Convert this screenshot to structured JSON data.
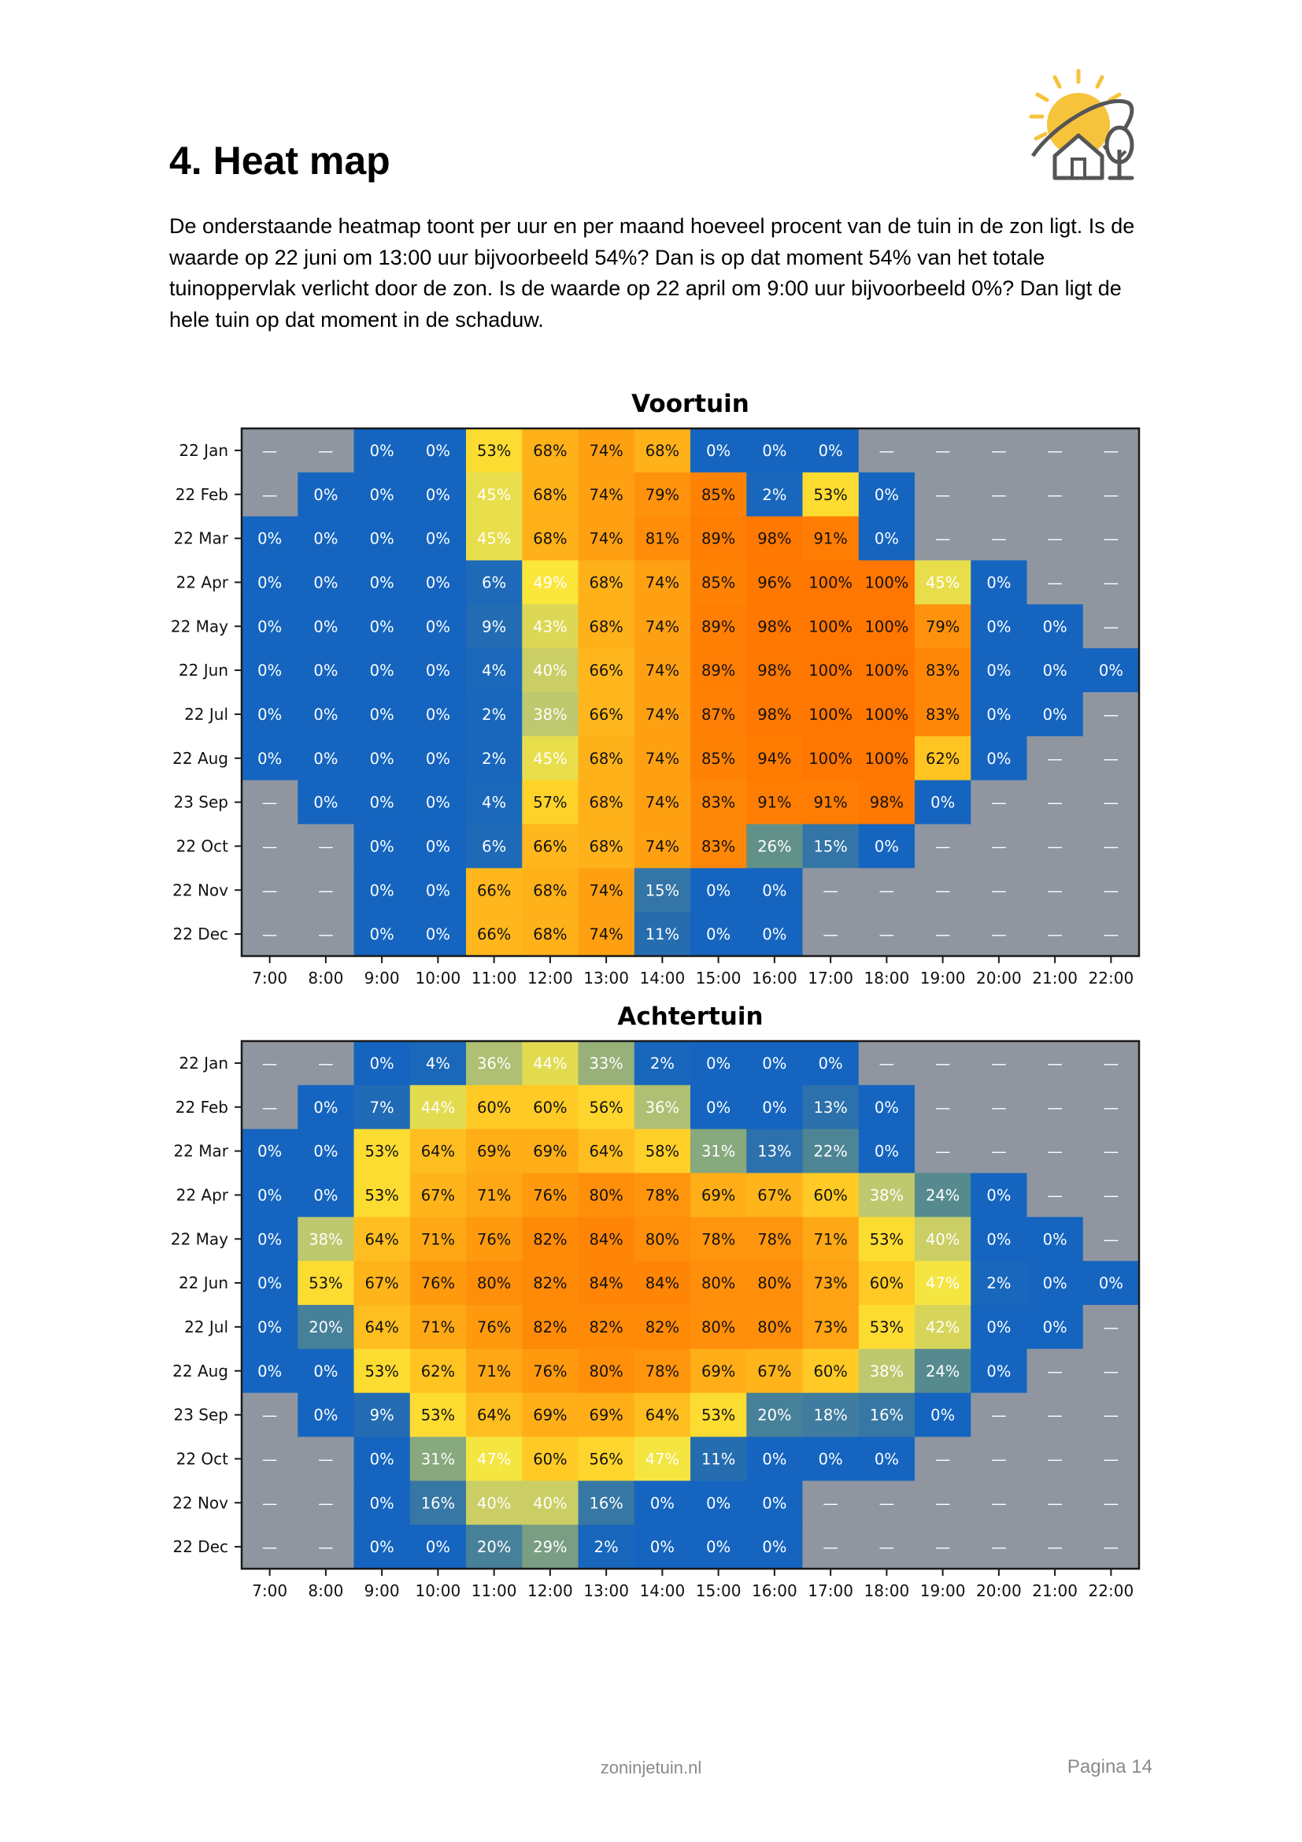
{
  "heading": "4. Heat map",
  "intro": "De onderstaande heatmap toont per uur en per maand hoeveel procent van de tuin in de zon ligt. Is de waarde op 22 juni om 13:00 uur bijvoorbeeld 54%? Dan is op dat moment 54% van het totale tuinoppervlak verlicht door de zon. Is de waarde op 22 april om 9:00 uur bijvoorbeeld 0%? Dan ligt de hele tuin op dat moment in de schaduw.",
  "logo_icon": "sun-house-tree-icon",
  "colors": {
    "no_sun_cell": "#8f96a0",
    "low": "#1565c0",
    "mid": "#ffe23a",
    "high": "#ff7a00"
  },
  "chart_data": [
    {
      "type": "heatmap",
      "title": "Voortuin",
      "x": [
        "7:00",
        "8:00",
        "9:00",
        "10:00",
        "11:00",
        "12:00",
        "13:00",
        "14:00",
        "15:00",
        "16:00",
        "17:00",
        "18:00",
        "19:00",
        "20:00",
        "21:00",
        "22:00"
      ],
      "y": [
        "22 Jan",
        "22 Feb",
        "22 Mar",
        "22 Apr",
        "22 May",
        "22 Jun",
        "22 Jul",
        "22 Aug",
        "23 Sep",
        "22 Oct",
        "22 Nov",
        "22 Dec"
      ],
      "values": [
        [
          null,
          null,
          0,
          0,
          53,
          68,
          74,
          68,
          0,
          0,
          0,
          null,
          null,
          null,
          null,
          null
        ],
        [
          null,
          0,
          0,
          0,
          45,
          68,
          74,
          79,
          85,
          2,
          53,
          0,
          null,
          null,
          null,
          null
        ],
        [
          0,
          0,
          0,
          0,
          45,
          68,
          74,
          81,
          89,
          98,
          91,
          0,
          null,
          null,
          null,
          null
        ],
        [
          0,
          0,
          0,
          0,
          6,
          49,
          68,
          74,
          85,
          96,
          100,
          100,
          45,
          0,
          null,
          null
        ],
        [
          0,
          0,
          0,
          0,
          9,
          43,
          68,
          74,
          89,
          98,
          100,
          100,
          79,
          0,
          0,
          null
        ],
        [
          0,
          0,
          0,
          0,
          4,
          40,
          66,
          74,
          89,
          98,
          100,
          100,
          83,
          0,
          0,
          0
        ],
        [
          0,
          0,
          0,
          0,
          2,
          38,
          66,
          74,
          87,
          98,
          100,
          100,
          83,
          0,
          0,
          null
        ],
        [
          0,
          0,
          0,
          0,
          2,
          45,
          68,
          74,
          85,
          94,
          100,
          100,
          62,
          0,
          null,
          null
        ],
        [
          null,
          0,
          0,
          0,
          4,
          57,
          68,
          74,
          83,
          91,
          91,
          98,
          0,
          null,
          null,
          null
        ],
        [
          null,
          null,
          0,
          0,
          6,
          66,
          68,
          74,
          83,
          26,
          15,
          0,
          null,
          null,
          null,
          null
        ],
        [
          null,
          null,
          0,
          0,
          66,
          68,
          74,
          15,
          0,
          0,
          null,
          null,
          null,
          null,
          null,
          null
        ],
        [
          null,
          null,
          0,
          0,
          66,
          68,
          74,
          11,
          0,
          0,
          null,
          null,
          null,
          null,
          null,
          null
        ]
      ],
      "value_unit": "%",
      "missing_label": "—"
    },
    {
      "type": "heatmap",
      "title": "Achtertuin",
      "x": [
        "7:00",
        "8:00",
        "9:00",
        "10:00",
        "11:00",
        "12:00",
        "13:00",
        "14:00",
        "15:00",
        "16:00",
        "17:00",
        "18:00",
        "19:00",
        "20:00",
        "21:00",
        "22:00"
      ],
      "y": [
        "22 Jan",
        "22 Feb",
        "22 Mar",
        "22 Apr",
        "22 May",
        "22 Jun",
        "22 Jul",
        "22 Aug",
        "23 Sep",
        "22 Oct",
        "22 Nov",
        "22 Dec"
      ],
      "values": [
        [
          null,
          null,
          0,
          4,
          36,
          44,
          33,
          2,
          0,
          0,
          0,
          null,
          null,
          null,
          null,
          null
        ],
        [
          null,
          0,
          7,
          44,
          60,
          60,
          56,
          36,
          0,
          0,
          13,
          0,
          null,
          null,
          null,
          null
        ],
        [
          0,
          0,
          53,
          64,
          69,
          69,
          64,
          58,
          31,
          13,
          22,
          0,
          null,
          null,
          null,
          null
        ],
        [
          0,
          0,
          53,
          67,
          71,
          76,
          80,
          78,
          69,
          67,
          60,
          38,
          24,
          0,
          null,
          null
        ],
        [
          0,
          38,
          64,
          71,
          76,
          82,
          84,
          80,
          78,
          78,
          71,
          53,
          40,
          0,
          0,
          null
        ],
        [
          0,
          53,
          67,
          76,
          80,
          82,
          84,
          84,
          80,
          80,
          73,
          60,
          47,
          2,
          0,
          0
        ],
        [
          0,
          20,
          64,
          71,
          76,
          82,
          82,
          82,
          80,
          80,
          73,
          53,
          42,
          0,
          0,
          null
        ],
        [
          0,
          0,
          53,
          62,
          71,
          76,
          80,
          78,
          69,
          67,
          60,
          38,
          24,
          0,
          null,
          null
        ],
        [
          null,
          0,
          9,
          53,
          64,
          69,
          69,
          64,
          53,
          20,
          18,
          16,
          0,
          null,
          null,
          null
        ],
        [
          null,
          null,
          0,
          31,
          47,
          60,
          56,
          47,
          11,
          0,
          0,
          0,
          null,
          null,
          null,
          null
        ],
        [
          null,
          null,
          0,
          16,
          40,
          40,
          16,
          0,
          0,
          0,
          null,
          null,
          null,
          null,
          null,
          null
        ],
        [
          null,
          null,
          0,
          0,
          20,
          29,
          2,
          0,
          0,
          0,
          null,
          null,
          null,
          null,
          null,
          null
        ]
      ],
      "value_unit": "%",
      "missing_label": "—"
    }
  ],
  "footer": {
    "site": "zoninjetuin.nl",
    "page": "Pagina 14"
  }
}
